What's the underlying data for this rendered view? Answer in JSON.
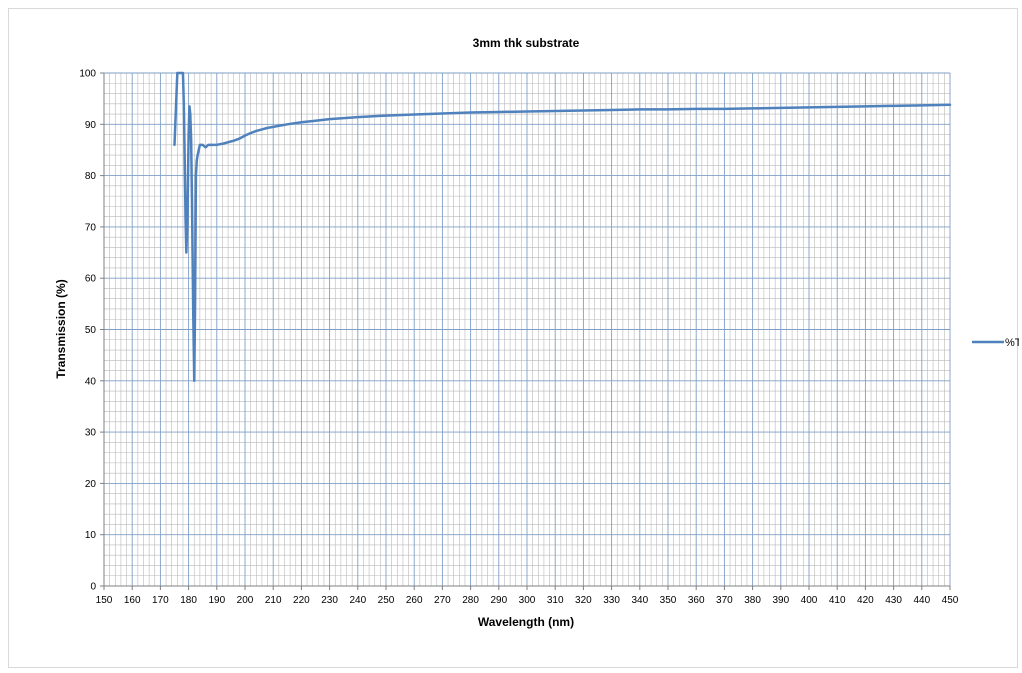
{
  "chart_data": {
    "type": "line",
    "title": "3mm thk substrate",
    "xlabel": "Wavelength (nm)",
    "ylabel": "Transmission (%)",
    "xlim": [
      150,
      450
    ],
    "ylim": [
      0,
      100
    ],
    "x_ticks": [
      150,
      160,
      170,
      180,
      190,
      200,
      210,
      220,
      230,
      240,
      250,
      260,
      270,
      280,
      290,
      300,
      310,
      320,
      330,
      340,
      350,
      360,
      370,
      380,
      390,
      400,
      410,
      420,
      430,
      440,
      450
    ],
    "y_ticks": [
      0,
      10,
      20,
      30,
      40,
      50,
      60,
      70,
      80,
      90,
      100
    ],
    "grid": true,
    "legend_position": "right",
    "colors": {
      "series": "#4f81bd",
      "major_grid": "#7f9fc6",
      "minor_grid": "#b9b9b9",
      "axis": "#808080"
    },
    "series": [
      {
        "name": "%T",
        "x": [
          175,
          175.5,
          176,
          176.5,
          177,
          177.5,
          178,
          178.3,
          178.6,
          178.9,
          179.2,
          179.6,
          180,
          180.3,
          180.6,
          180.9,
          181.2,
          181.6,
          182,
          182.3,
          182.6,
          182.9,
          183.2,
          183.6,
          184,
          185,
          186,
          187,
          188,
          189,
          190,
          192,
          194,
          196,
          198,
          200,
          202,
          204,
          206,
          208,
          210,
          215,
          220,
          225,
          230,
          235,
          240,
          250,
          260,
          270,
          280,
          290,
          300,
          310,
          320,
          330,
          340,
          350,
          360,
          370,
          380,
          390,
          400,
          410,
          420,
          430,
          440,
          450
        ],
        "y": [
          86,
          93,
          100,
          100,
          100,
          100,
          100,
          94,
          84,
          72,
          65,
          72,
          88,
          93.5,
          92,
          87,
          75,
          55,
          40,
          55,
          80,
          83,
          84,
          85,
          86,
          86,
          85.5,
          86,
          86,
          86,
          86,
          86.2,
          86.5,
          86.8,
          87.2,
          87.8,
          88.3,
          88.7,
          89,
          89.3,
          89.5,
          90,
          90.4,
          90.7,
          91,
          91.2,
          91.4,
          91.7,
          91.9,
          92.1,
          92.3,
          92.4,
          92.5,
          92.6,
          92.7,
          92.8,
          92.9,
          92.9,
          93,
          93,
          93.1,
          93.2,
          93.3,
          93.4,
          93.5,
          93.6,
          93.7,
          93.8
        ]
      }
    ]
  }
}
